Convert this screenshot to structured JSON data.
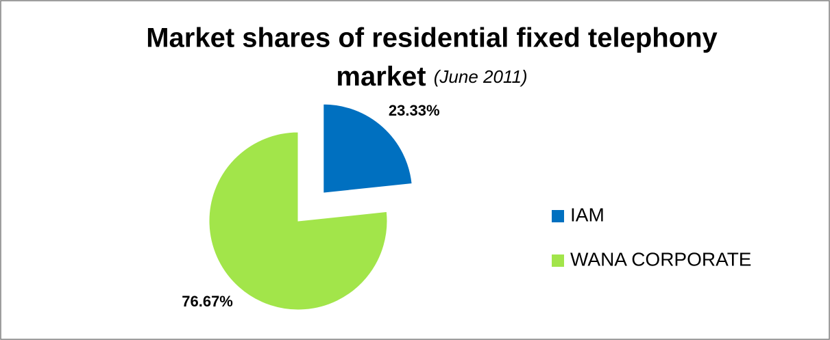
{
  "chart_data": {
    "type": "pie",
    "title": "Market shares of residential fixed telephony",
    "title_line2": "market",
    "subtitle": "(June 2011)",
    "categories": [
      "IAM",
      "WANA CORPORATE"
    ],
    "values": [
      23.33,
      76.67
    ],
    "value_labels": [
      "23.33%",
      "76.67%"
    ],
    "colors": [
      "#0070c0",
      "#a2e54a"
    ],
    "legend": "right"
  }
}
